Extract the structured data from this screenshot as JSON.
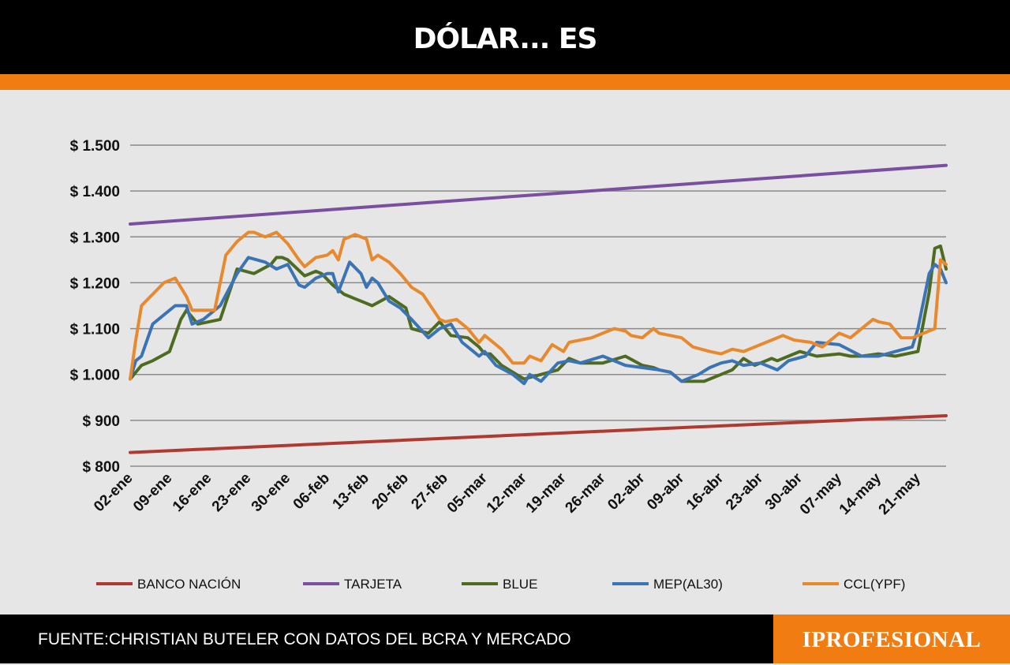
{
  "header": {
    "title": "DÓLAR... ES"
  },
  "footer": {
    "source": "FUENTE:CHRISTIAN BUTELER CON DATOS DEL BCRA Y MERCADO",
    "brand": "IPROFESIONAL"
  },
  "colors": {
    "accent": "#f07c12",
    "header_bg": "#000000",
    "chart_bg": "#e6e6e6",
    "grid": "#8a8a8a"
  },
  "chart_data": {
    "type": "line",
    "title": "DÓLAR... ES",
    "xlabel": "",
    "ylabel": "",
    "ylim": [
      800,
      1500
    ],
    "yticks": [
      800,
      900,
      1000,
      1100,
      1200,
      1300,
      1400,
      1500
    ],
    "ytick_labels": [
      "$ 800",
      "$ 900",
      "$ 1.000",
      "$ 1.100",
      "$ 1.200",
      "$ 1.300",
      "$ 1.400",
      "$ 1.500"
    ],
    "xlim": [
      0,
      145
    ],
    "x_tick_days": [
      0,
      7,
      14,
      21,
      28,
      35,
      42,
      49,
      56,
      63,
      70,
      77,
      84,
      91,
      98,
      105,
      112,
      119,
      126,
      133,
      140
    ],
    "categories": [
      "02-ene",
      "09-ene",
      "16-ene",
      "23-ene",
      "30-ene",
      "06-feb",
      "13-feb",
      "20-feb",
      "27-feb",
      "05-mar",
      "12-mar",
      "19-mar",
      "26-mar",
      "02-abr",
      "09-abr",
      "16-abr",
      "23-abr",
      "30-abr",
      "07-may",
      "14-may",
      "21-may"
    ],
    "grid": true,
    "legend_position": "bottom",
    "series": [
      {
        "name": "BANCO NACIÓN",
        "color": "#b03a32",
        "x": [
          0,
          145
        ],
        "y": [
          830,
          910
        ]
      },
      {
        "name": "TARJETA",
        "color": "#7a4ea0",
        "x": [
          0,
          145
        ],
        "y": [
          1328,
          1456
        ]
      },
      {
        "name": "BLUE",
        "color": "#4e6b22",
        "x": [
          0,
          2,
          4,
          7,
          9,
          10,
          12,
          14,
          16,
          19,
          22,
          25,
          26,
          27,
          28,
          31,
          33,
          34,
          36,
          38,
          39,
          40,
          41,
          43,
          46,
          49,
          50,
          53,
          55,
          57,
          60,
          62,
          63,
          64,
          66,
          68,
          70,
          73,
          76,
          78,
          80,
          84,
          88,
          91,
          93,
          94,
          96,
          98,
          102,
          105,
          107,
          109,
          111,
          113,
          114,
          115,
          119,
          122,
          126,
          128,
          130,
          133,
          136,
          140,
          142,
          143,
          144,
          145
        ],
        "y": [
          990,
          1020,
          1030,
          1050,
          1120,
          1140,
          1110,
          1115,
          1120,
          1230,
          1220,
          1240,
          1255,
          1255,
          1250,
          1215,
          1225,
          1220,
          1195,
          1175,
          1170,
          1165,
          1160,
          1150,
          1170,
          1145,
          1100,
          1090,
          1115,
          1085,
          1080,
          1060,
          1045,
          1045,
          1020,
          1005,
          990,
          1000,
          1010,
          1035,
          1025,
          1025,
          1040,
          1020,
          1015,
          1010,
          1005,
          985,
          985,
          1000,
          1010,
          1035,
          1020,
          1030,
          1035,
          1030,
          1050,
          1040,
          1045,
          1040,
          1040,
          1045,
          1040,
          1050,
          1180,
          1275,
          1280,
          1230
        ]
      },
      {
        "name": "MEP(AL30)",
        "color": "#3b74b4",
        "x": [
          0,
          1,
          2,
          4,
          6,
          8,
          10,
          11,
          13,
          16,
          19,
          21,
          24,
          26,
          28,
          30,
          31,
          33,
          35,
          36,
          37,
          39,
          41,
          42,
          43,
          44,
          46,
          48,
          50,
          53,
          55,
          57,
          59,
          61,
          62,
          63,
          65,
          68,
          70,
          71,
          73,
          76,
          78,
          80,
          84,
          88,
          91,
          94,
          96,
          98,
          101,
          103,
          105,
          107,
          109,
          112,
          115,
          117,
          120,
          122,
          126,
          130,
          133,
          136,
          139,
          140,
          142,
          143,
          144,
          145
        ],
        "y": [
          990,
          1030,
          1040,
          1110,
          1130,
          1150,
          1150,
          1110,
          1120,
          1150,
          1220,
          1255,
          1245,
          1230,
          1240,
          1195,
          1190,
          1210,
          1220,
          1220,
          1180,
          1245,
          1220,
          1190,
          1210,
          1200,
          1160,
          1145,
          1120,
          1080,
          1100,
          1110,
          1070,
          1050,
          1040,
          1050,
          1020,
          1000,
          980,
          1000,
          985,
          1025,
          1030,
          1025,
          1040,
          1020,
          1015,
          1010,
          1005,
          985,
          1000,
          1015,
          1025,
          1030,
          1020,
          1025,
          1010,
          1030,
          1040,
          1070,
          1065,
          1040,
          1040,
          1050,
          1060,
          1100,
          1220,
          1240,
          1230,
          1200
        ]
      },
      {
        "name": "CCL(YPF)",
        "color": "#e8892e",
        "x": [
          0,
          1,
          2,
          4,
          6,
          8,
          10,
          11,
          13,
          15,
          17,
          19,
          21,
          22,
          24,
          26,
          28,
          30,
          31,
          33,
          35,
          36,
          37,
          38,
          40,
          42,
          43,
          44,
          46,
          48,
          50,
          52,
          55,
          56,
          58,
          60,
          62,
          63,
          64,
          66,
          68,
          70,
          71,
          73,
          75,
          77,
          78,
          80,
          82,
          84,
          86,
          88,
          89,
          91,
          93,
          94,
          96,
          98,
          100,
          103,
          105,
          107,
          109,
          111,
          112,
          114,
          116,
          118,
          121,
          123,
          126,
          128,
          130,
          132,
          133,
          135,
          137,
          139,
          141,
          143,
          144,
          145
        ],
        "y": [
          990,
          1075,
          1150,
          1175,
          1200,
          1210,
          1170,
          1140,
          1140,
          1140,
          1260,
          1290,
          1310,
          1310,
          1300,
          1310,
          1285,
          1250,
          1235,
          1255,
          1260,
          1270,
          1250,
          1295,
          1305,
          1295,
          1250,
          1260,
          1245,
          1220,
          1190,
          1175,
          1120,
          1115,
          1120,
          1100,
          1070,
          1085,
          1075,
          1055,
          1025,
          1025,
          1040,
          1030,
          1065,
          1050,
          1070,
          1075,
          1080,
          1090,
          1100,
          1095,
          1085,
          1080,
          1100,
          1090,
          1085,
          1080,
          1060,
          1050,
          1045,
          1055,
          1050,
          1060,
          1065,
          1075,
          1085,
          1075,
          1070,
          1060,
          1090,
          1080,
          1100,
          1120,
          1115,
          1110,
          1080,
          1080,
          1090,
          1100,
          1250,
          1240
        ]
      }
    ]
  }
}
